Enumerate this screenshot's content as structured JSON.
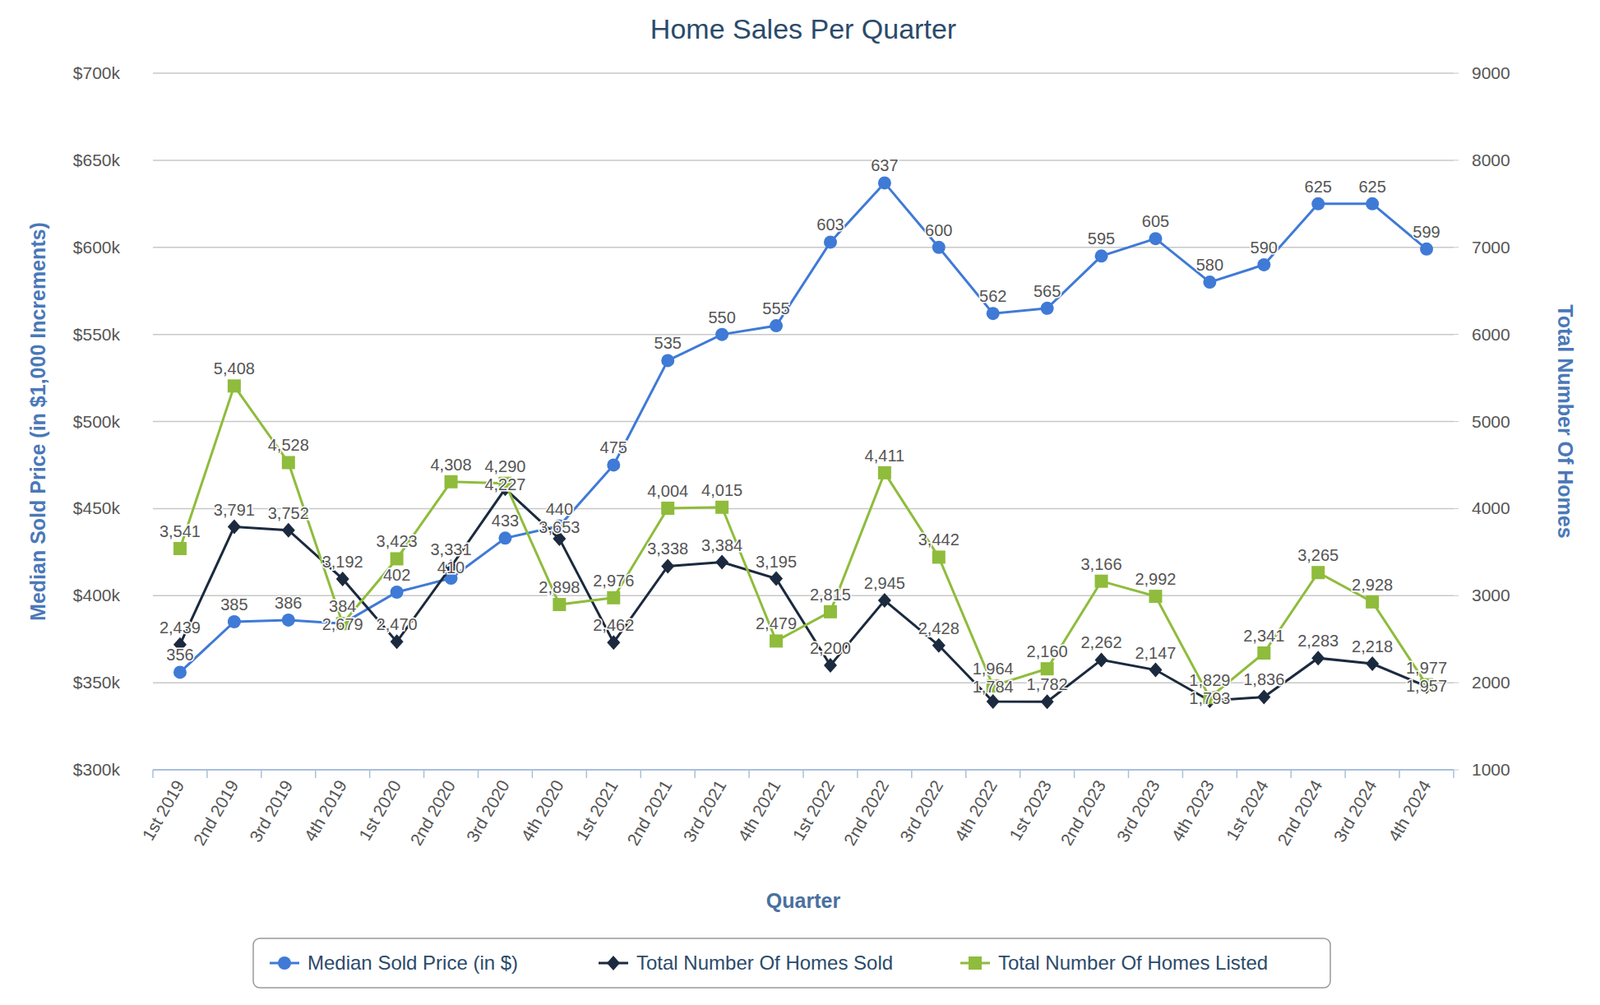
{
  "chart_data": {
    "type": "line",
    "title": "Home Sales Per Quarter",
    "x_label": "Quarter",
    "y_label": "Median Sold Price (in $1,000 Increments)",
    "y2_label": "Total Number Of Homes",
    "categories": [
      "1st 2019",
      "2nd 2019",
      "3rd 2019",
      "4th 2019",
      "1st 2020",
      "2nd 2020",
      "3rd 2020",
      "4th 2020",
      "1st 2021",
      "2nd 2021",
      "3rd 2021",
      "4th 2021",
      "1st 2022",
      "2nd 2022",
      "3rd 2022",
      "4th 2022",
      "1st 2023",
      "2nd 2023",
      "3rd 2023",
      "4th 2023",
      "1st 2024",
      "2nd 2024",
      "3rd 2024",
      "4th 2024"
    ],
    "ylim": [
      300,
      700
    ],
    "yticks": [
      {
        "value": 300,
        "label": "$300k"
      },
      {
        "value": 350,
        "label": "$350k"
      },
      {
        "value": 400,
        "label": "$400k"
      },
      {
        "value": 450,
        "label": "$450k"
      },
      {
        "value": 500,
        "label": "$500k"
      },
      {
        "value": 550,
        "label": "$550k"
      },
      {
        "value": 600,
        "label": "$600k"
      },
      {
        "value": 650,
        "label": "$650k"
      },
      {
        "value": 700,
        "label": "$700k"
      }
    ],
    "y2lim": [
      1000,
      9000
    ],
    "y2ticks": [
      1000,
      2000,
      3000,
      4000,
      5000,
      6000,
      7000,
      8000,
      9000
    ],
    "grid": true,
    "legend": "bottom",
    "data_labels": true,
    "series": [
      {
        "name": "Median Sold Price (in $)",
        "color": "#3f7ad6",
        "marker": "circle",
        "values": [
          356,
          385,
          386,
          384,
          402,
          410,
          433,
          440,
          475,
          535,
          550,
          555,
          603,
          637,
          600,
          562,
          565,
          595,
          605,
          580,
          590,
          625,
          625,
          599
        ]
      },
      {
        "name": "Total Number Of Homes Sold",
        "color": "#1b2a3e",
        "marker": "diamond",
        "axis": "y2",
        "values": [
          2439,
          3791,
          3752,
          3192,
          2470,
          3331,
          4227,
          3653,
          2462,
          3338,
          3384,
          3195,
          2200,
          2945,
          2428,
          1784,
          1782,
          2262,
          2147,
          1793,
          1836,
          2283,
          2218,
          1957
        ],
        "value_labels": [
          "2,439",
          "3,791",
          "3,752",
          "3,192",
          "2,470",
          "3,331",
          "4,227",
          "3,653",
          "2,462",
          "3,338",
          "3,384",
          "3,195",
          "2,200",
          "2,945",
          "2,428",
          "1,784",
          "1,782",
          "2,262",
          "2,147",
          "1,793",
          "1,836",
          "2,283",
          "2,218",
          "1,957"
        ]
      },
      {
        "name": "Total Number Of Homes Listed",
        "color": "#8fbc3c",
        "marker": "square",
        "axis": "y2",
        "values": [
          3541,
          5408,
          4528,
          2679,
          3423,
          4308,
          4290,
          2898,
          2976,
          4004,
          4015,
          2479,
          2815,
          4411,
          3442,
          1964,
          2160,
          3166,
          2992,
          1829,
          2341,
          3265,
          2928,
          1977
        ],
        "value_labels": [
          "3,541",
          "5,408",
          "4,528",
          "2,679",
          "3,423",
          "4,308",
          "4,290",
          "2,898",
          "2,976",
          "4,004",
          "4,015",
          "2,479",
          "2,815",
          "4,411",
          "3,442",
          "1,964",
          "2,160",
          "3,166",
          "2,992",
          "1,829",
          "2,341",
          "3,265",
          "2,928",
          "1,977"
        ]
      }
    ]
  }
}
